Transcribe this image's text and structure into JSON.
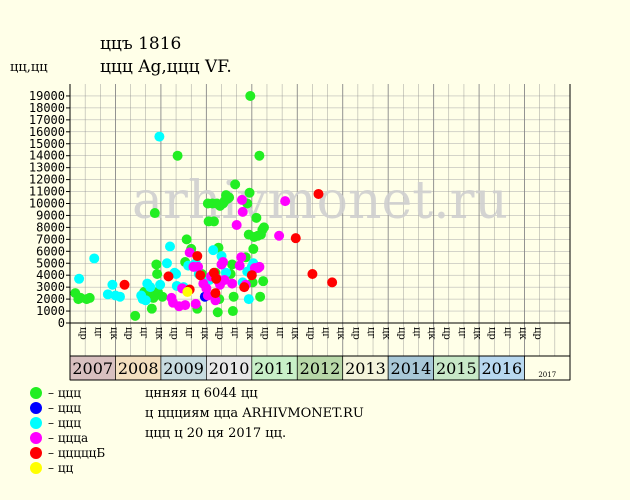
{
  "header": {
    "title": "ццъ 1816",
    "subtitle": "ццц Ag,ццц VF.",
    "unit_label": "цц,цц"
  },
  "watermark": "arhivmonet.ru",
  "notes": [
    "цнняя ц 6044 цц",
    "ц ццциям цца ARHIVMONET.RU",
    "ццц ц 20 ця 2017 цц."
  ],
  "legend": [
    {
      "label": "– ццц",
      "color": "#22ee22"
    },
    {
      "label": "– ццц",
      "color": "#0000ff"
    },
    {
      "label": "– ццц",
      "color": "#00ffff"
    },
    {
      "label": "– ццца",
      "color": "#ff00ff"
    },
    {
      "label": "– цццццБ",
      "color": "#ff0000"
    },
    {
      "label": "– цц",
      "color": "#ffff00"
    }
  ],
  "chart_data": {
    "type": "scatter",
    "ylim": [
      0,
      20000
    ],
    "yticks": [
      0,
      1000,
      2000,
      3000,
      4000,
      5000,
      6000,
      7000,
      8000,
      9000,
      10000,
      11000,
      12000,
      13000,
      14000,
      15000,
      16000,
      17000,
      18000,
      19000
    ],
    "quarter_labels": [
      "цр",
      "цг",
      "цк"
    ],
    "years": [
      {
        "label": "2007",
        "color": "#d8c0c0"
      },
      {
        "label": "2008",
        "color": "#f4e0c0"
      },
      {
        "label": "2009",
        "color": "#c8dce0"
      },
      {
        "label": "2010",
        "color": "#e8e8e8"
      },
      {
        "label": "2011",
        "color": "#c8f0c8"
      },
      {
        "label": "2012",
        "color": "#b8d8a8"
      },
      {
        "label": "2013",
        "color": "#f4f4dc"
      },
      {
        "label": "2014",
        "color": "#a8c8d8"
      },
      {
        "label": "2015",
        "color": "#c8e8c8"
      },
      {
        "label": "2016",
        "color": "#b8d8f0"
      },
      {
        "label": "2017",
        "color": "#ffffe8"
      }
    ],
    "series": [
      {
        "color": "#22ee22",
        "points": [
          [
            0.35,
            2500
          ],
          [
            0.55,
            2000
          ],
          [
            0.7,
            2100
          ],
          [
            1.1,
            2000
          ],
          [
            1.3,
            2100
          ],
          [
            4.3,
            600
          ],
          [
            4.9,
            2600
          ],
          [
            5.2,
            2500
          ],
          [
            5.4,
            1200
          ],
          [
            5.5,
            2100
          ],
          [
            5.6,
            9200
          ],
          [
            5.7,
            4900
          ],
          [
            5.75,
            4100
          ],
          [
            5.8,
            2600
          ],
          [
            6.1,
            2200
          ],
          [
            7.1,
            14000
          ],
          [
            7.6,
            5100
          ],
          [
            7.7,
            7000
          ],
          [
            8.0,
            6200
          ],
          [
            8.4,
            1200
          ],
          [
            8.7,
            4100
          ],
          [
            8.85,
            3700
          ],
          [
            9.1,
            10000
          ],
          [
            9.15,
            8500
          ],
          [
            9.4,
            10000
          ],
          [
            9.5,
            8500
          ],
          [
            9.6,
            4200
          ],
          [
            9.7,
            10000
          ],
          [
            9.75,
            900
          ],
          [
            9.8,
            6300
          ],
          [
            9.85,
            2000
          ],
          [
            9.9,
            9800
          ],
          [
            10.1,
            10000
          ],
          [
            10.2,
            10200
          ],
          [
            10.3,
            10700
          ],
          [
            10.4,
            10400
          ],
          [
            10.5,
            10500
          ],
          [
            10.6,
            4100
          ],
          [
            10.7,
            4900
          ],
          [
            10.75,
            1000
          ],
          [
            10.8,
            2200
          ],
          [
            10.9,
            11600
          ],
          [
            11.6,
            5500
          ],
          [
            11.7,
            10000
          ],
          [
            11.8,
            7400
          ],
          [
            11.85,
            10900
          ],
          [
            11.9,
            19000
          ],
          [
            12.0,
            4200
          ],
          [
            12.05,
            3400
          ],
          [
            12.1,
            6200
          ],
          [
            12.15,
            7200
          ],
          [
            12.3,
            8800
          ],
          [
            12.4,
            7300
          ],
          [
            12.5,
            14000
          ],
          [
            12.55,
            2200
          ],
          [
            12.6,
            7400
          ],
          [
            12.7,
            7800
          ],
          [
            12.75,
            3500
          ],
          [
            12.8,
            8000
          ]
        ]
      },
      {
        "color": "#0000ff",
        "points": [
          [
            8.9,
            2200
          ]
        ]
      },
      {
        "color": "#00ffff",
        "points": [
          [
            0.6,
            3700
          ],
          [
            1.6,
            5400
          ],
          [
            2.5,
            2400
          ],
          [
            2.8,
            3200
          ],
          [
            3.0,
            2300
          ],
          [
            3.3,
            2200
          ],
          [
            4.7,
            2300
          ],
          [
            4.8,
            2000
          ],
          [
            5.0,
            1900
          ],
          [
            5.1,
            3300
          ],
          [
            5.3,
            3000
          ],
          [
            5.9,
            15600
          ],
          [
            5.95,
            3200
          ],
          [
            6.4,
            5000
          ],
          [
            6.6,
            6400
          ],
          [
            6.9,
            4200
          ],
          [
            7.0,
            4100
          ],
          [
            7.05,
            3100
          ],
          [
            7.5,
            3000
          ],
          [
            7.8,
            4800
          ],
          [
            8.3,
            5000
          ],
          [
            8.5,
            4100
          ],
          [
            9.2,
            3600
          ],
          [
            9.45,
            6100
          ],
          [
            10.0,
            5600
          ],
          [
            10.3,
            4200
          ],
          [
            11.4,
            3400
          ],
          [
            11.5,
            3200
          ],
          [
            11.7,
            4300
          ],
          [
            11.8,
            2000
          ],
          [
            12.0,
            4700
          ],
          [
            12.1,
            5000
          ]
        ]
      },
      {
        "color": "#ff00ff",
        "points": [
          [
            6.7,
            2100
          ],
          [
            6.8,
            1700
          ],
          [
            7.2,
            1400
          ],
          [
            7.4,
            2900
          ],
          [
            7.6,
            1500
          ],
          [
            7.9,
            5900
          ],
          [
            8.15,
            4700
          ],
          [
            8.3,
            1600
          ],
          [
            8.45,
            4700
          ],
          [
            8.8,
            3300
          ],
          [
            9.0,
            2900
          ],
          [
            9.1,
            2300
          ],
          [
            9.3,
            3900
          ],
          [
            9.6,
            1900
          ],
          [
            9.7,
            3700
          ],
          [
            9.8,
            3500
          ],
          [
            9.9,
            3200
          ],
          [
            10.0,
            4900
          ],
          [
            10.1,
            5100
          ],
          [
            10.2,
            3600
          ],
          [
            10.7,
            3300
          ],
          [
            11.0,
            8200
          ],
          [
            11.2,
            4800
          ],
          [
            11.3,
            5500
          ],
          [
            11.35,
            10300
          ],
          [
            11.4,
            9300
          ],
          [
            11.5,
            3000
          ],
          [
            11.6,
            3200
          ],
          [
            12.2,
            4600
          ],
          [
            12.4,
            4600
          ],
          [
            12.5,
            4700
          ],
          [
            13.8,
            7300
          ],
          [
            14.2,
            10200
          ]
        ]
      },
      {
        "color": "#ff0000",
        "points": [
          [
            3.6,
            3200
          ],
          [
            6.5,
            3900
          ],
          [
            7.9,
            2800
          ],
          [
            8.4,
            5600
          ],
          [
            8.6,
            4000
          ],
          [
            9.5,
            4200
          ],
          [
            9.6,
            2500
          ],
          [
            9.65,
            3700
          ],
          [
            11.5,
            3000
          ],
          [
            12.0,
            4000
          ],
          [
            14.9,
            7100
          ],
          [
            16.0,
            4100
          ],
          [
            16.4,
            10800
          ],
          [
            17.3,
            3400
          ]
        ]
      },
      {
        "color": "#ffff00",
        "points": [
          [
            7.75,
            2600
          ]
        ]
      }
    ]
  }
}
